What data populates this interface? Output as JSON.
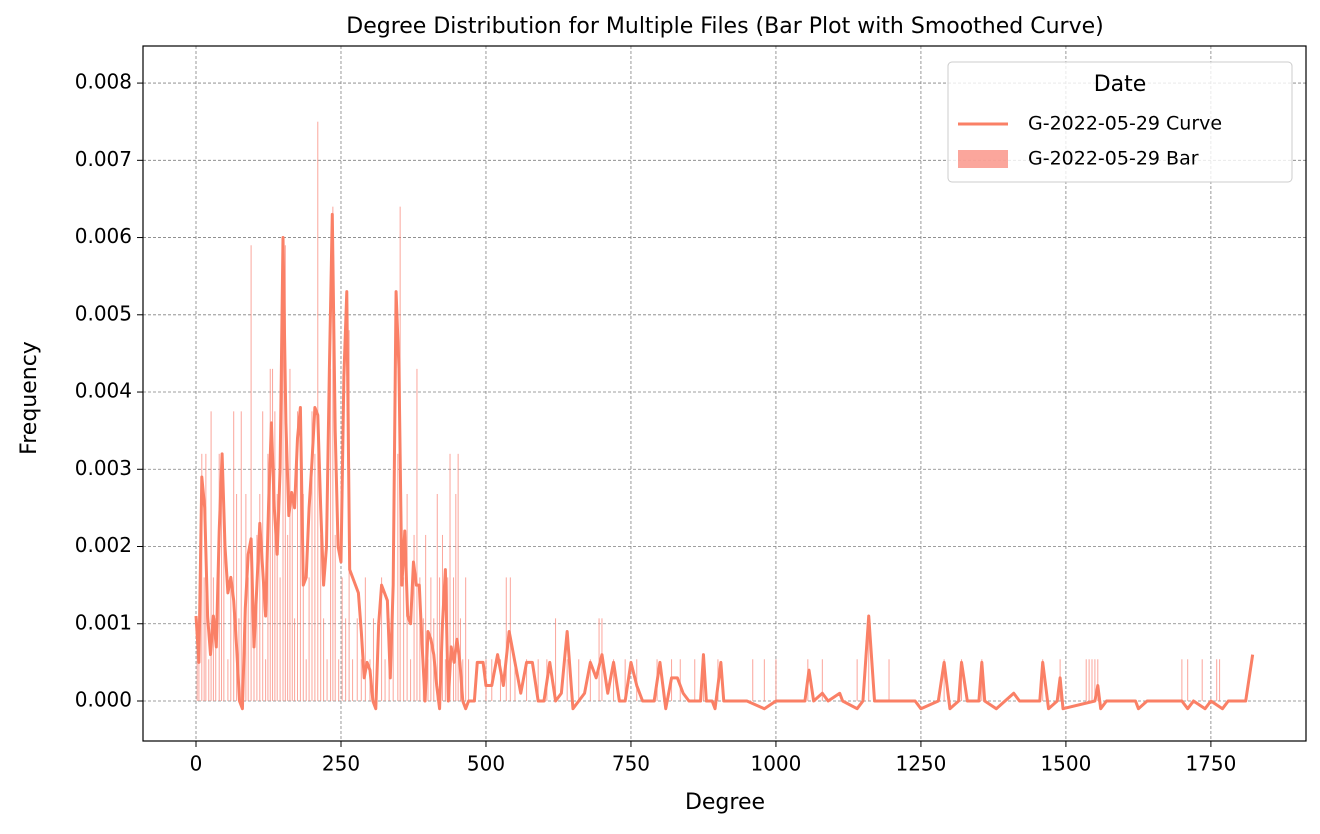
{
  "chart_data": {
    "type": "bar",
    "title": "Degree Distribution for Multiple Files (Bar Plot with Smoothed Curve)",
    "xlabel": "Degree",
    "ylabel": "Frequency",
    "xlim": [
      -91.4,
      1914
    ],
    "ylim": [
      -0.000518,
      0.00848
    ],
    "xticks": [
      0,
      250,
      500,
      750,
      1000,
      1250,
      1500,
      1750
    ],
    "yticks": [
      {
        "value": 0,
        "label": "0.000"
      },
      0.001,
      0.002,
      0.003,
      0.004,
      0.005,
      0.006,
      0.007,
      0.008
    ],
    "grid": true,
    "legend": {
      "title": "Date",
      "loc": "upper right"
    },
    "series": [
      {
        "name": "G-2022-05-29 Curve",
        "type": "line",
        "color": "#fa8066",
        "x": [
          0,
          5,
          10,
          15,
          20,
          25,
          30,
          35,
          40,
          45,
          50,
          55,
          60,
          65,
          70,
          75,
          80,
          85,
          90,
          95,
          100,
          105,
          110,
          115,
          120,
          125,
          130,
          135,
          140,
          145,
          150,
          155,
          160,
          165,
          170,
          175,
          180,
          185,
          190,
          195,
          200,
          205,
          210,
          215,
          220,
          225,
          230,
          235,
          240,
          245,
          250,
          255,
          260,
          265,
          270,
          280,
          285,
          290,
          295,
          300,
          305,
          310,
          315,
          320,
          330,
          335,
          340,
          345,
          350,
          355,
          360,
          365,
          370,
          375,
          380,
          385,
          390,
          395,
          400,
          405,
          410,
          415,
          420,
          425,
          430,
          435,
          440,
          445,
          450,
          455,
          460,
          465,
          470,
          480,
          485,
          495,
          500,
          510,
          520,
          530,
          540,
          550,
          560,
          570,
          580,
          590,
          600,
          610,
          620,
          630,
          640,
          650,
          660,
          670,
          680,
          690,
          700,
          710,
          720,
          730,
          740,
          750,
          760,
          770,
          790,
          800,
          810,
          820,
          830,
          840,
          850,
          870,
          875,
          880,
          890,
          895,
          905,
          910,
          950,
          980,
          1000,
          1050,
          1057,
          1065,
          1080,
          1090,
          1110,
          1115,
          1140,
          1150,
          1160,
          1170,
          1240,
          1250,
          1280,
          1290,
          1300,
          1315,
          1320,
          1330,
          1350,
          1355,
          1360,
          1380,
          1410,
          1420,
          1455,
          1460,
          1470,
          1485,
          1490,
          1495,
          1550,
          1555,
          1560,
          1570,
          1620,
          1625,
          1640,
          1700,
          1710,
          1720,
          1740,
          1750,
          1770,
          1780,
          1810,
          1822
        ],
        "values": [
          0.0011,
          0.0005,
          0.0029,
          0.0025,
          0.0011,
          0.0006,
          0.0011,
          0.0007,
          0.0022,
          0.0032,
          0.002,
          0.0014,
          0.0016,
          0.0013,
          0.0007,
          0,
          -0.0001,
          0.0012,
          0.0019,
          0.0021,
          0.0007,
          0.0015,
          0.0023,
          0.0017,
          0.0011,
          0.0025,
          0.0036,
          0.0025,
          0.0019,
          0.003,
          0.006,
          0.0036,
          0.0024,
          0.0027,
          0.0025,
          0.0034,
          0.0038,
          0.0015,
          0.0016,
          0.0025,
          0.0031,
          0.0038,
          0.0037,
          0.0025,
          0.0015,
          0.002,
          0.0043,
          0.0063,
          0.0035,
          0.002,
          0.0018,
          0.0042,
          0.0053,
          0.0017,
          0.0016,
          0.0014,
          0.0009,
          0.0003,
          0.0005,
          0.0004,
          0,
          -0.0001,
          0.001,
          0.0015,
          0.0013,
          0.0003,
          0.0015,
          0.0053,
          0.0043,
          0.0015,
          0.0022,
          0.0011,
          0.001,
          0.0018,
          0.0015,
          0.0015,
          0.0007,
          0,
          0.0009,
          0.0008,
          0.0006,
          0.0002,
          -0.0001,
          0.001,
          0.0017,
          0,
          0.0007,
          0.0005,
          0.0008,
          0.0005,
          0,
          -0.0001,
          0,
          0,
          0.0005,
          0.0005,
          0.0002,
          0.0002,
          0.0006,
          0.0002,
          0.0009,
          0.0005,
          0.0001,
          0.0005,
          0.0005,
          0,
          0,
          0.0005,
          0,
          0.0001,
          0.0009,
          -0.0001,
          0,
          0.0001,
          0.0005,
          0.0003,
          0.0006,
          0.0001,
          0.0005,
          0,
          0,
          0.0005,
          0.0002,
          0,
          0,
          0.0005,
          -0.0001,
          0.0003,
          0.0003,
          0.0001,
          0,
          0,
          0.0006,
          0,
          0,
          -0.0001,
          0.0005,
          0,
          0,
          -0.0001,
          0,
          0,
          0.0004,
          0,
          0.0001,
          0,
          0.0001,
          0,
          -0.0001,
          0,
          0.0011,
          0,
          0,
          -0.0001,
          0,
          0.0005,
          -0.0001,
          0,
          0.0005,
          0,
          0,
          0.0005,
          0,
          -0.0001,
          0.0001,
          0,
          0,
          0.0005,
          -0.0001,
          0,
          0.0003,
          -0.0001,
          0,
          0.0002,
          -0.0001,
          0,
          0,
          -0.0001,
          0,
          0,
          -0.0001,
          0,
          -0.0001,
          0,
          -0.0001,
          0,
          0,
          0.0006
        ]
      },
      {
        "name": "G-2022-05-29 Bar",
        "type": "bar",
        "color": "#fa8072",
        "x": [
          2,
          5,
          10,
          14,
          17,
          22,
          26,
          30,
          34,
          40,
          44,
          48,
          55,
          60,
          65,
          70,
          74,
          78,
          82,
          86,
          90,
          95,
          100,
          105,
          110,
          115,
          120,
          124,
          128,
          132,
          136,
          140,
          145,
          150,
          154,
          158,
          162,
          166,
          170,
          175,
          180,
          185,
          190,
          195,
          200,
          205,
          210,
          215,
          220,
          226,
          232,
          236,
          240,
          246,
          252,
          258,
          264,
          270,
          278,
          285,
          292,
          300,
          306,
          312,
          320,
          326,
          333,
          340,
          348,
          352,
          358,
          364,
          370,
          376,
          381,
          386,
          392,
          396,
          400,
          405,
          410,
          416,
          420,
          425,
          430,
          434,
          438,
          444,
          448,
          452,
          456,
          460,
          465,
          470,
          500,
          510,
          525,
          535,
          542,
          550,
          570,
          590,
          605,
          620,
          640,
          660,
          680,
          695,
          700,
          720,
          740,
          760,
          795,
          820,
          835,
          860,
          875,
          900,
          960,
          980,
          1000,
          1055,
          1080,
          1140,
          1160,
          1195,
          1290,
          1320,
          1355,
          1460,
          1490,
          1535,
          1540,
          1545,
          1550,
          1555,
          1700,
          1710,
          1735,
          1760,
          1765
        ],
        "values": [
          0.00107,
          0.00054,
          0.0032,
          0.0016,
          0.0032,
          0.00054,
          0.00375,
          0.0016,
          0.00107,
          0.0032,
          0.00268,
          0.00215,
          0.00054,
          0.0016,
          0.00375,
          0.00268,
          0.00107,
          0.00375,
          0.00054,
          0.00268,
          0.0016,
          0.0059,
          0.00107,
          0.00215,
          0.00268,
          0.00375,
          0.00054,
          0.0032,
          0.0043,
          0.0043,
          0.00375,
          0.00268,
          0.0016,
          0.0048,
          0.0059,
          0.00215,
          0.0043,
          0.00268,
          0.00107,
          0.00375,
          0.0032,
          0.00268,
          0.00054,
          0.0016,
          0.00375,
          0.0032,
          0.0075,
          0.00215,
          0.00107,
          0.00054,
          0.0043,
          0.0064,
          0.00215,
          0.00054,
          0.0016,
          0.00107,
          0.0048,
          0.00054,
          0.00107,
          0.00054,
          0.0016,
          0.00054,
          0.00107,
          0.00054,
          0.0016,
          0.00054,
          0.00107,
          0.0016,
          0.0032,
          0.0064,
          0.0016,
          0.00268,
          0.00054,
          0.00215,
          0.0043,
          0.0016,
          0.00107,
          0.00215,
          0.00054,
          0.0016,
          0.00107,
          0.00268,
          0.0016,
          0.00215,
          0.00054,
          0.0016,
          0.0032,
          0.0016,
          0.00268,
          0.0032,
          0.00107,
          0.00054,
          0.0016,
          0.00054,
          0.00054,
          0.00054,
          0.00054,
          0.0016,
          0.0016,
          0.00054,
          0.00054,
          0.00054,
          0.00054,
          0.00107,
          0.00054,
          0.00054,
          0.00054,
          0.00107,
          0.00107,
          0.00054,
          0.00054,
          0.00054,
          0.00054,
          0.00054,
          0.00054,
          0.00054,
          0.00054,
          0.00054,
          0.00054,
          0.00054,
          0.00054,
          0.00054,
          0.00054,
          0.00054,
          0.00107,
          0.00054,
          0.00054,
          0.00054,
          0.00054,
          0.00054,
          0.00054,
          0.00054,
          0.00054,
          0.00054,
          0.00054,
          0.00054,
          0.00054,
          0.00054,
          0.00054,
          0.00054,
          0.00054
        ]
      }
    ]
  }
}
